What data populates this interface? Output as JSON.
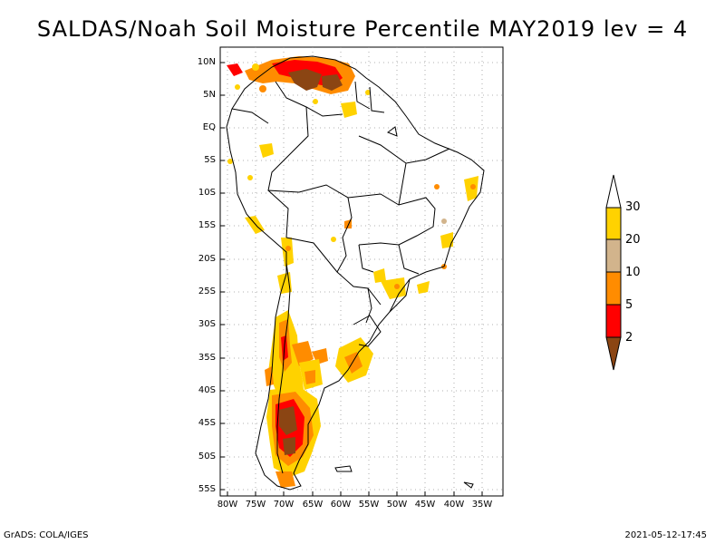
{
  "title": "SALDAS/Noah Soil Moisture Percentile MAY2019 lev = 4",
  "axes": {
    "y_labels": [
      "10N",
      "5N",
      "EQ",
      "5S",
      "10S",
      "15S",
      "20S",
      "25S",
      "30S",
      "35S",
      "40S",
      "45S",
      "50S",
      "55S"
    ],
    "x_labels": [
      "80W",
      "75W",
      "70W",
      "65W",
      "60W",
      "55W",
      "50W",
      "45W",
      "40W",
      "35W"
    ]
  },
  "colorbar": {
    "labels": [
      "30",
      "20",
      "10",
      "5",
      "2"
    ],
    "colors": {
      "over_30": "#ffffff",
      "20_30": "#ffd200",
      "10_20": "#d2b48c",
      "5_10": "#ff8c00",
      "2_5": "#ff0000",
      "under_2": "#8b4513"
    }
  },
  "footer": {
    "left": "GrADS: COLA/IGES",
    "right": "2021-05-12-17:45"
  }
}
